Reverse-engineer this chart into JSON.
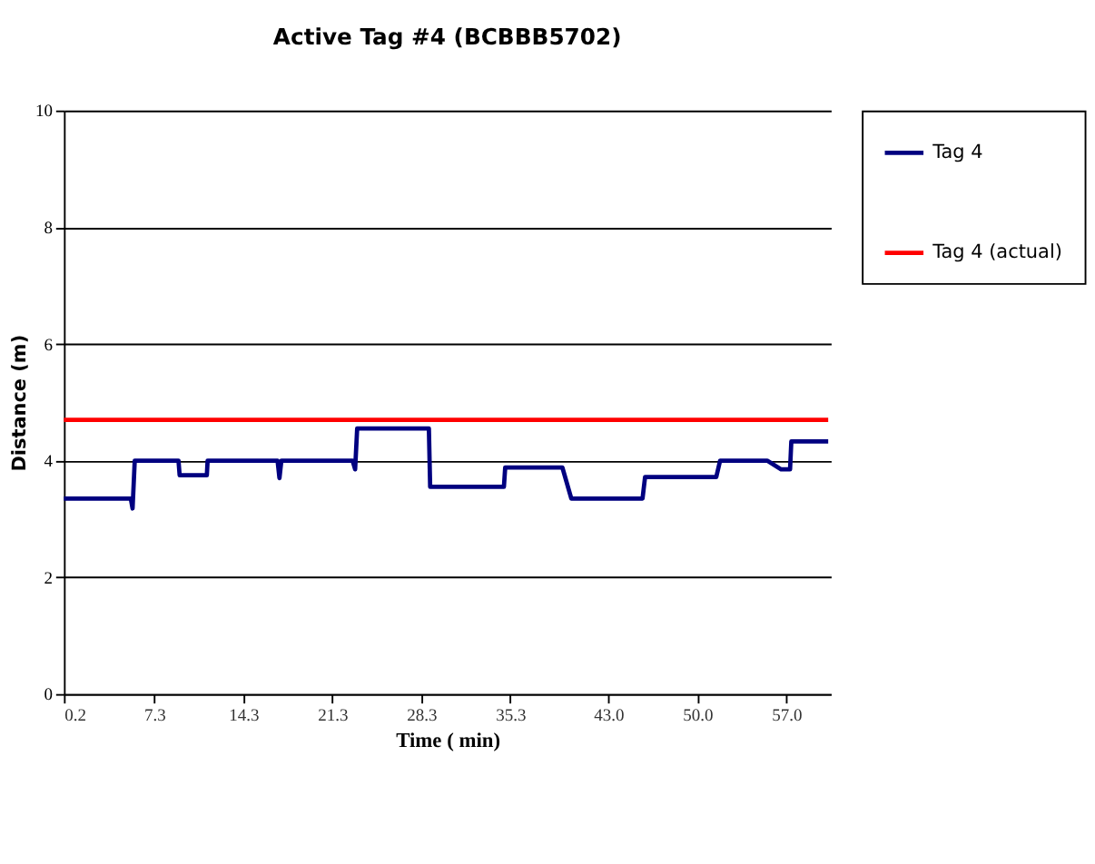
{
  "chart_data": {
    "type": "line",
    "title": "Active Tag #4 (BCBBB5702)",
    "xlabel": "Time ( min)",
    "ylabel": "Distance (m)",
    "xlim": [
      0.2,
      60.5
    ],
    "ylim": [
      0,
      10
    ],
    "xticks": [
      0.2,
      7.3,
      14.3,
      21.3,
      28.3,
      35.3,
      {
        "value": 43,
        "label": "43.0"
      },
      {
        "value": 50,
        "label": "50.0"
      },
      {
        "value": 57,
        "label": "57.0"
      }
    ],
    "yticks": [
      0,
      2,
      4,
      6,
      8,
      10
    ],
    "grid": "y",
    "legend": "right",
    "line_style": "solid",
    "marker": "none",
    "series": [
      {
        "name": "Tag 4",
        "color": "#000080",
        "x": [
          0.2,
          5.46,
          5.6,
          5.77,
          9.21,
          9.3,
          11.44,
          11.5,
          17.0,
          17.15,
          17.3,
          22.9,
          23.1,
          23.26,
          28.9,
          29.0,
          34.8,
          34.9,
          39.4,
          40.1,
          45.7,
          45.9,
          51.5,
          51.8,
          55.5,
          56.6,
          57.3,
          57.4,
          60.3
        ],
        "values": [
          3.35,
          3.35,
          3.18,
          4.0,
          4.0,
          3.75,
          3.75,
          4.0,
          4.0,
          3.7,
          4.0,
          4.0,
          3.85,
          4.55,
          4.55,
          3.55,
          3.55,
          3.88,
          3.88,
          3.35,
          3.35,
          3.72,
          3.72,
          4.0,
          4.0,
          3.85,
          3.85,
          4.33,
          4.33
        ]
      },
      {
        "name": "Tag 4 (actual)",
        "color": "#ff0000",
        "x": [
          0.2,
          60.3
        ],
        "values": [
          4.7,
          4.7
        ]
      }
    ]
  }
}
